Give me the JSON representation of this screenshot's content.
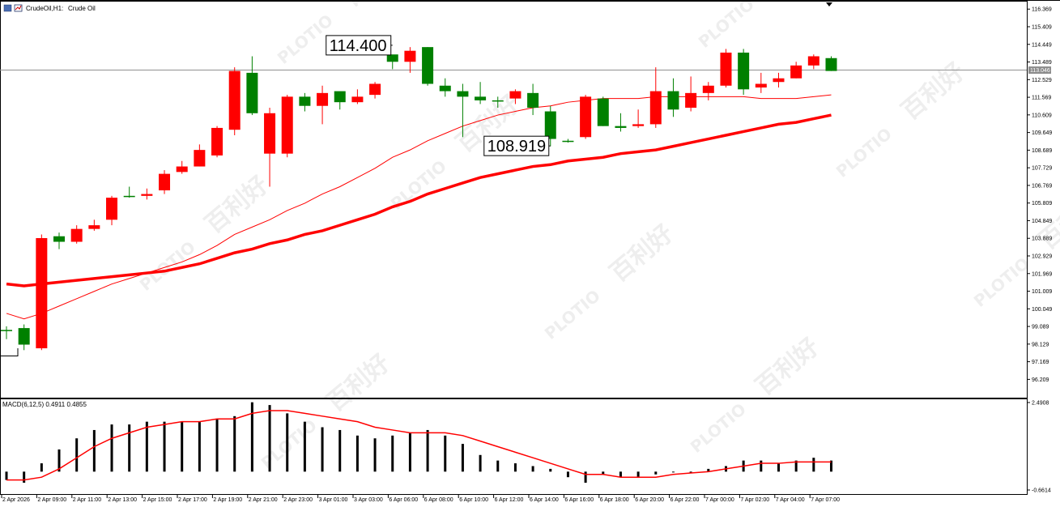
{
  "header": {
    "symbol": "CrudeOil,H1:",
    "description": "Crude Oil"
  },
  "colors": {
    "bull": "#008000",
    "bear": "#ff0000",
    "ma": "#ff0000",
    "macd_hist": "#000000",
    "macd_signal": "#ff0000",
    "grid": "#000000",
    "price_tag_bg": "#8c8c8c",
    "watermark": "#d0d0d0"
  },
  "watermark": {
    "brand": "PLOTIO",
    "cn": "百利好"
  },
  "chart_data": {
    "type": "candlestick",
    "timeframe": "H1",
    "price_axis": {
      "ticks": [
        "116.369",
        "115.409",
        "114.449",
        "113.489",
        "112.529",
        "111.569",
        "110.609",
        "109.649",
        "108.689",
        "107.729",
        "106.769",
        "105.809",
        "104.849",
        "103.889",
        "102.929",
        "101.969",
        "101.009",
        "100.049",
        "99.089",
        "98.129",
        "97.169",
        "96.209"
      ],
      "range": [
        95.3,
        116.6
      ]
    },
    "current_price": "113.046",
    "callouts": [
      {
        "label": "114.400",
        "price": 114.4,
        "bar": 22
      },
      {
        "label": "108.919",
        "price": 108.919,
        "bar": 31
      }
    ],
    "time_axis": [
      "2 Apr 2026",
      "2 Apr 09:00",
      "2 Apr 11:00",
      "2 Apr 13:00",
      "2 Apr 15:00",
      "2 Apr 17:00",
      "2 Apr 19:00",
      "2 Apr 21:00",
      "2 Apr 23:00",
      "3 Apr 01:00",
      "3 Apr 03:00",
      "6 Apr 06:00",
      "6 Apr 08:00",
      "6 Apr 10:00",
      "6 Apr 12:00",
      "6 Apr 14:00",
      "6 Apr 16:00",
      "6 Apr 18:00",
      "6 Apr 20:00",
      "6 Apr 22:00",
      "7 Apr 00:00",
      "7 Apr 02:00",
      "7 Apr 04:00",
      "7 Apr 07:00"
    ],
    "candles": [
      {
        "o": 98.9,
        "h": 99.1,
        "l": 98.4,
        "c": 98.9
      },
      {
        "o": 98.1,
        "h": 99.2,
        "l": 97.8,
        "c": 99.0
      },
      {
        "o": 103.9,
        "h": 104.1,
        "l": 97.8,
        "c": 97.9
      },
      {
        "o": 103.7,
        "h": 104.2,
        "l": 103.3,
        "c": 104.0
      },
      {
        "o": 104.4,
        "h": 104.6,
        "l": 103.6,
        "c": 103.7
      },
      {
        "o": 104.6,
        "h": 104.9,
        "l": 104.3,
        "c": 104.4
      },
      {
        "o": 106.1,
        "h": 106.2,
        "l": 104.6,
        "c": 104.9
      },
      {
        "o": 106.2,
        "h": 106.7,
        "l": 106.1,
        "c": 106.2
      },
      {
        "o": 106.3,
        "h": 106.6,
        "l": 106.0,
        "c": 106.2
      },
      {
        "o": 107.4,
        "h": 107.6,
        "l": 106.3,
        "c": 106.5
      },
      {
        "o": 107.8,
        "h": 108.1,
        "l": 107.4,
        "c": 107.5
      },
      {
        "o": 108.7,
        "h": 109.0,
        "l": 107.8,
        "c": 107.8
      },
      {
        "o": 109.9,
        "h": 110.0,
        "l": 108.3,
        "c": 108.4
      },
      {
        "o": 113.0,
        "h": 113.2,
        "l": 109.5,
        "c": 109.8
      },
      {
        "o": 110.7,
        "h": 113.8,
        "l": 110.6,
        "c": 112.9
      },
      {
        "o": 110.7,
        "h": 111.0,
        "l": 106.7,
        "c": 108.5
      },
      {
        "o": 111.6,
        "h": 111.7,
        "l": 108.3,
        "c": 108.5
      },
      {
        "o": 111.1,
        "h": 111.8,
        "l": 110.8,
        "c": 111.6
      },
      {
        "o": 111.8,
        "h": 112.2,
        "l": 110.1,
        "c": 111.1
      },
      {
        "o": 111.3,
        "h": 111.8,
        "l": 110.9,
        "c": 111.9
      },
      {
        "o": 111.6,
        "h": 112.0,
        "l": 111.2,
        "c": 111.3
      },
      {
        "o": 112.3,
        "h": 112.4,
        "l": 111.5,
        "c": 111.7
      },
      {
        "o": 113.5,
        "h": 113.8,
        "l": 113.1,
        "c": 113.9
      },
      {
        "o": 114.1,
        "h": 114.3,
        "l": 112.9,
        "c": 113.5
      },
      {
        "o": 112.3,
        "h": 114.3,
        "l": 112.2,
        "c": 114.3
      },
      {
        "o": 111.9,
        "h": 112.6,
        "l": 111.6,
        "c": 112.2
      },
      {
        "o": 111.6,
        "h": 112.3,
        "l": 109.4,
        "c": 111.9
      },
      {
        "o": 111.4,
        "h": 112.4,
        "l": 111.2,
        "c": 111.6
      },
      {
        "o": 111.4,
        "h": 111.6,
        "l": 111.0,
        "c": 111.4
      },
      {
        "o": 111.9,
        "h": 112.0,
        "l": 111.2,
        "c": 111.5
      },
      {
        "o": 111.0,
        "h": 112.3,
        "l": 110.6,
        "c": 111.8
      },
      {
        "o": 109.3,
        "h": 111.1,
        "l": 108.9,
        "c": 110.8
      },
      {
        "o": 109.2,
        "h": 109.3,
        "l": 109.1,
        "c": 109.2
      },
      {
        "o": 111.6,
        "h": 111.7,
        "l": 109.3,
        "c": 109.4
      },
      {
        "o": 110.0,
        "h": 111.6,
        "l": 110.0,
        "c": 111.5
      },
      {
        "o": 109.9,
        "h": 110.7,
        "l": 109.7,
        "c": 110.0
      },
      {
        "o": 110.1,
        "h": 110.9,
        "l": 109.9,
        "c": 110.0
      },
      {
        "o": 111.9,
        "h": 113.2,
        "l": 109.9,
        "c": 110.1
      },
      {
        "o": 110.9,
        "h": 112.6,
        "l": 110.5,
        "c": 111.9
      },
      {
        "o": 111.8,
        "h": 112.7,
        "l": 110.8,
        "c": 111.0
      },
      {
        "o": 112.2,
        "h": 112.4,
        "l": 111.4,
        "c": 111.8
      },
      {
        "o": 114.0,
        "h": 114.2,
        "l": 112.1,
        "c": 112.2
      },
      {
        "o": 112.0,
        "h": 114.2,
        "l": 111.7,
        "c": 114.0
      },
      {
        "o": 112.3,
        "h": 112.9,
        "l": 111.8,
        "c": 112.1
      },
      {
        "o": 112.6,
        "h": 112.9,
        "l": 112.1,
        "c": 112.4
      },
      {
        "o": 113.3,
        "h": 113.5,
        "l": 112.6,
        "c": 112.6
      },
      {
        "o": 113.8,
        "h": 113.9,
        "l": 113.1,
        "c": 113.3
      },
      {
        "o": 113.0,
        "h": 113.8,
        "l": 113.0,
        "c": 113.7
      }
    ],
    "ma_thin": [
      99.8,
      99.5,
      99.8,
      100.2,
      100.6,
      101.0,
      101.4,
      101.7,
      102.0,
      102.3,
      102.6,
      103.0,
      103.5,
      104.1,
      104.5,
      104.9,
      105.4,
      105.8,
      106.3,
      106.7,
      107.2,
      107.7,
      108.3,
      108.7,
      109.2,
      109.6,
      110.0,
      110.3,
      110.6,
      110.8,
      111.0,
      111.1,
      111.3,
      111.4,
      111.5,
      111.5,
      111.5,
      111.6,
      111.6,
      111.6,
      111.6,
      111.6,
      111.6,
      111.5,
      111.5,
      111.5,
      111.6,
      111.7
    ],
    "ma_thick": [
      101.4,
      101.3,
      101.4,
      101.5,
      101.6,
      101.7,
      101.8,
      101.9,
      102.0,
      102.1,
      102.3,
      102.5,
      102.8,
      103.1,
      103.3,
      103.6,
      103.8,
      104.1,
      104.3,
      104.6,
      104.9,
      105.2,
      105.6,
      105.9,
      106.3,
      106.6,
      106.9,
      107.2,
      107.4,
      107.6,
      107.8,
      107.9,
      108.1,
      108.2,
      108.3,
      108.5,
      108.6,
      108.7,
      108.9,
      109.1,
      109.3,
      109.5,
      109.7,
      109.9,
      110.1,
      110.2,
      110.4,
      110.6
    ],
    "macd": {
      "label": "MACD(6,12,5) 0.4911 0.4855",
      "axis_ticks": [
        "2.4908",
        "-0.6614"
      ],
      "range": [
        -0.6614,
        2.4908
      ],
      "histogram": [
        -0.3,
        -0.4,
        0.3,
        0.8,
        1.2,
        1.5,
        1.7,
        1.7,
        1.8,
        1.8,
        1.8,
        1.8,
        1.9,
        2.0,
        2.5,
        2.4,
        2.1,
        1.8,
        1.6,
        1.5,
        1.3,
        1.2,
        1.3,
        1.4,
        1.5,
        1.3,
        1.0,
        0.6,
        0.4,
        0.3,
        0.2,
        0.1,
        -0.2,
        -0.4,
        -0.1,
        -0.2,
        -0.2,
        -0.1,
        0.0,
        -0.05,
        0.1,
        0.2,
        0.4,
        0.4,
        0.3,
        0.4,
        0.5,
        0.4
      ],
      "signal": [
        -0.3,
        -0.3,
        -0.2,
        0.1,
        0.5,
        0.9,
        1.2,
        1.4,
        1.6,
        1.7,
        1.8,
        1.8,
        1.9,
        1.9,
        2.1,
        2.2,
        2.2,
        2.1,
        2.0,
        1.9,
        1.8,
        1.6,
        1.5,
        1.4,
        1.4,
        1.4,
        1.3,
        1.1,
        0.9,
        0.7,
        0.5,
        0.3,
        0.1,
        -0.1,
        -0.1,
        -0.2,
        -0.2,
        -0.2,
        -0.1,
        -0.05,
        0.0,
        0.1,
        0.2,
        0.3,
        0.3,
        0.35,
        0.35,
        0.35
      ]
    }
  }
}
